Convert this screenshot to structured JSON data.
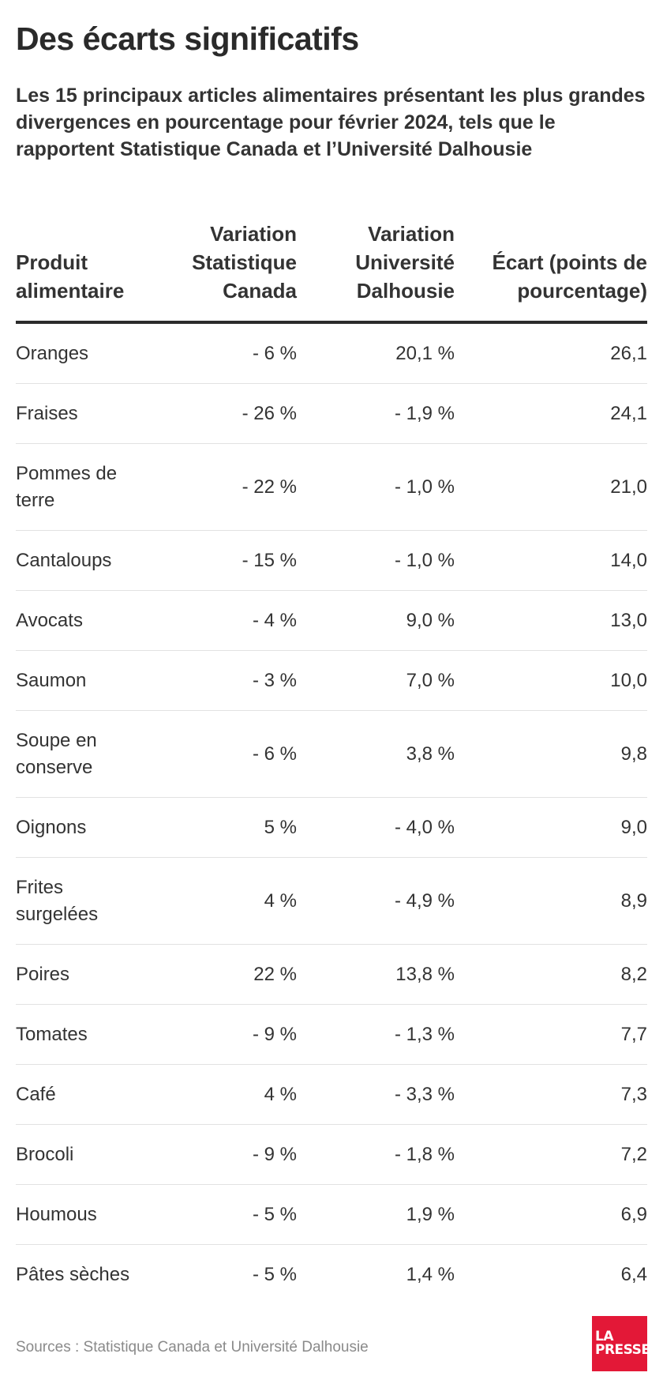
{
  "title": "Des écarts significatifs",
  "subtitle": "Les 15 principaux articles alimentaires présentant les plus grandes divergences en pourcentage pour février 2024, tels que le rapportent Statistique Canada et l’Université Dalhousie",
  "chart_data": {
    "type": "table",
    "columns": [
      "Produit alimentaire",
      "Variation Statistique Canada",
      "Variation Université Dalhousie",
      "Écart (points de pourcentage)"
    ],
    "rows": [
      [
        "Oranges",
        "- 6 %",
        "20,1 %",
        "26,1"
      ],
      [
        "Fraises",
        "- 26 %",
        "- 1,9 %",
        "24,1"
      ],
      [
        "Pommes de terre",
        "- 22 %",
        "- 1,0 %",
        "21,0"
      ],
      [
        "Cantaloups",
        "- 15 %",
        "- 1,0 %",
        "14,0"
      ],
      [
        "Avocats",
        "- 4 %",
        "9,0 %",
        "13,0"
      ],
      [
        "Saumon",
        "- 3 %",
        "7,0 %",
        "10,0"
      ],
      [
        "Soupe en conserve",
        "- 6 %",
        "3,8 %",
        "9,8"
      ],
      [
        "Oignons",
        "5 %",
        "- 4,0 %",
        "9,0"
      ],
      [
        "Frites surgelées",
        "4 %",
        "- 4,9 %",
        "8,9"
      ],
      [
        "Poires",
        "22 %",
        "13,8 %",
        "8,2"
      ],
      [
        "Tomates",
        "- 9 %",
        "- 1,3 %",
        "7,7"
      ],
      [
        "Café",
        "4 %",
        "- 3,3 %",
        "7,3"
      ],
      [
        "Brocoli",
        "- 9 %",
        "- 1,8 %",
        "7,2"
      ],
      [
        "Houmous",
        "- 5 %",
        "1,9 %",
        "6,9"
      ],
      [
        "Pâtes sèches",
        "- 5 %",
        "1,4 %",
        "6,4"
      ]
    ]
  },
  "footer": {
    "sources": "Sources : Statistique Canada et Université Dalhousie"
  },
  "logo": {
    "line1": "LA",
    "line2": "PRESSE",
    "color": "#e31837"
  }
}
